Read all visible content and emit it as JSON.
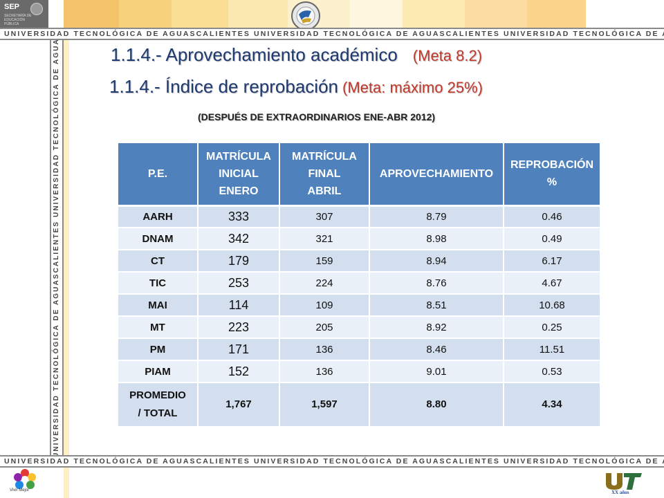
{
  "header": {
    "sep_label": "SEP",
    "sep_sub": "SECRETARÍA DE EDUCACIÓN PÚBLICA",
    "banner_text": "UNIVERSIDAD TECNOLÓGICA DE AGUASCALIENTES   UNIVERSIDAD TECNOLÓGICA DE AGUASCALIENTES   UNIVERSIDAD TECNOLÓGICA DE AGUASCALIENTES",
    "vertical_text": "UNIVERSIDAD TECNOLÓGICA DE AGUASCALIENTES   UNIVERSIDAD TECNOLÓGICA DE AGUASCALIENTES   UNIVERSIDAD TECNOLÓGICA DE AGUASCALIENTES"
  },
  "titles": {
    "line1": "1.1.4.- Aprovechamiento académico",
    "line1_meta": "(Meta 8.2)",
    "line2": "1.1.4.- Índice de reprobación",
    "line2_meta": "(Meta: máximo 25%)",
    "subtitle": "(DESPUÉS DE EXTRAORDINARIOS ENE-ABR 2012)"
  },
  "table": {
    "headers": {
      "pe": "P.E.",
      "inicial_1": "MATRÍCULA",
      "inicial_2": "INICIAL",
      "inicial_3": "ENERO",
      "final_1": "MATRÍCULA",
      "final_2": "FINAL",
      "final_3": "ABRIL",
      "aprov": "APROVECHAMIENTO",
      "reprob_1": "REPROBACIÓN",
      "reprob_2": "%"
    },
    "rows": [
      {
        "pe": "AARH",
        "inicial": "333",
        "final": "307",
        "aprov": "8.79",
        "reprob": "0.46"
      },
      {
        "pe": "DNAM",
        "inicial": "342",
        "final": "321",
        "aprov": "8.98",
        "reprob": "0.49"
      },
      {
        "pe": "CT",
        "inicial": "179",
        "final": "159",
        "aprov": "8.94",
        "reprob": "6.17"
      },
      {
        "pe": "TIC",
        "inicial": "253",
        "final": "224",
        "aprov": "8.76",
        "reprob": "4.67"
      },
      {
        "pe": "MAI",
        "inicial": "114",
        "final": "109",
        "aprov": "8.51",
        "reprob": "10.68"
      },
      {
        "pe": "MT",
        "inicial": "223",
        "final": "205",
        "aprov": "8.92",
        "reprob": "0.25"
      },
      {
        "pe": "PM",
        "inicial": "171",
        "final": "136",
        "aprov": "8.46",
        "reprob": "11.51"
      },
      {
        "pe": "PIAM",
        "inicial": "152",
        "final": "136",
        "aprov": "9.01",
        "reprob": "0.53"
      }
    ],
    "total": {
      "pe_1": "PROMEDIO",
      "pe_2": "/ TOTAL",
      "inicial": "1,767",
      "final": "1,597",
      "aprov": "8.80",
      "reprob": "4.34"
    }
  },
  "footer": {
    "vivir_mejor": "Vivir Mejor",
    "xx_logo": "XX años"
  },
  "colors": {
    "header_blue": "#4f81bd",
    "row_dark": "#d3dfee",
    "row_light": "#eaf0f7",
    "title_blue": "#1f3a70",
    "meta_red": "#c0392b"
  }
}
